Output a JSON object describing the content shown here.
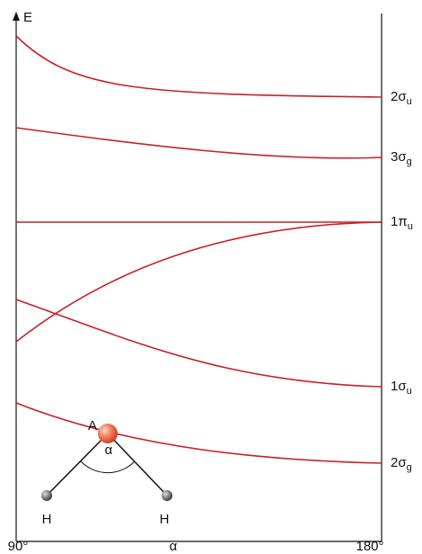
{
  "axes": {
    "y_label": "E",
    "x_start": "90°",
    "x_label": "α",
    "x_end": "180°"
  },
  "levels": [
    {
      "base": "2σ",
      "sub": "u"
    },
    {
      "base": "3σ",
      "sub": "g"
    },
    {
      "base": "1π",
      "sub": "u"
    },
    {
      "base": "1σ",
      "sub": "u"
    },
    {
      "base": "2σ",
      "sub": "g"
    }
  ],
  "molecule": {
    "center": "A",
    "angle": "α",
    "left": "H",
    "right": "H"
  }
}
